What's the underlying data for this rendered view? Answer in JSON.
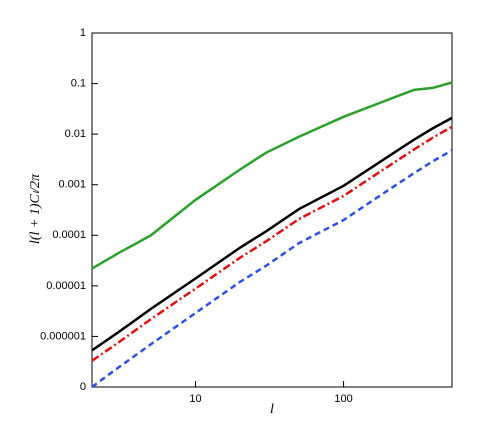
{
  "chart_data": {
    "type": "line",
    "x_log": true,
    "y_log": true,
    "xlabel": "l",
    "ylabel": "l(l + 1)Cₗ/2π",
    "xlim": [
      2,
      540
    ],
    "ylim": [
      1e-07,
      1
    ],
    "xticks": [
      10,
      100
    ],
    "yticks": [
      1,
      0.1,
      0.01,
      0.001,
      0.0001,
      1e-05,
      1e-06,
      {
        "value": 1e-07,
        "label": "0"
      }
    ],
    "x": [
      2,
      3,
      5,
      10,
      20,
      30,
      50,
      100,
      200,
      300,
      400,
      540
    ],
    "series": [
      {
        "color": "#2ca02c",
        "dash": "none",
        "values": [
          2.2e-05,
          4.4e-05,
          0.0001,
          0.0005,
          0.002,
          0.0043,
          0.0089,
          0.022,
          0.048,
          0.075,
          0.082,
          0.105
        ]
      },
      {
        "color": "#000000",
        "dash": "none",
        "values": [
          5.3e-07,
          1.2e-06,
          3.5e-06,
          1.4e-05,
          5.7e-05,
          0.00012,
          0.00033,
          0.00095,
          0.0036,
          0.0078,
          0.013,
          0.021
        ]
      },
      {
        "color": "#e01010",
        "dash": "8,3,2,3",
        "values": [
          3.3e-07,
          7.5e-07,
          2.2e-06,
          8.8e-06,
          3.6e-05,
          7.6e-05,
          0.00021,
          0.0006,
          0.0023,
          0.005,
          0.0085,
          0.014
        ]
      },
      {
        "color": "#3050e0",
        "dash": "6,4",
        "values": [
          1e-07,
          2.4e-07,
          7e-07,
          2.9e-06,
          1.2e-05,
          2.5e-05,
          7e-05,
          0.0002,
          0.00078,
          0.0017,
          0.0029,
          0.0048
        ]
      }
    ]
  }
}
